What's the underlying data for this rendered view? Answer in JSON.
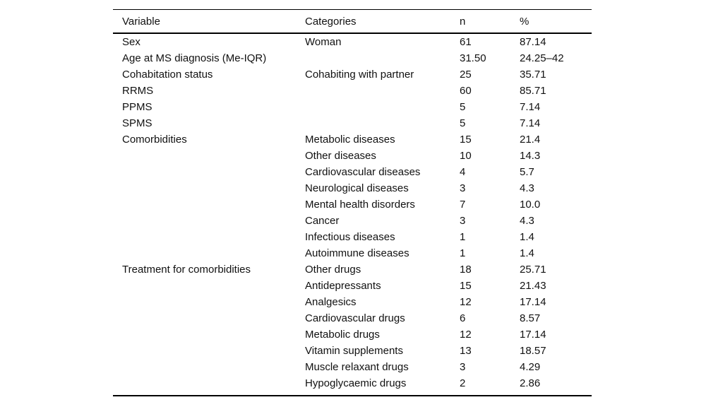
{
  "table": {
    "header": {
      "variable": "Variable",
      "category": "Categories",
      "n": "n",
      "pct": "%"
    },
    "rows": [
      [
        "Sex",
        "Woman",
        "61",
        "87.14"
      ],
      [
        "Age at MS diagnosis (Me-IQR)",
        "",
        "31.50",
        "24.25–42"
      ],
      [
        "Cohabitation status",
        "Cohabiting with partner",
        "25",
        "35.71"
      ],
      [
        "RRMS",
        "",
        "60",
        "85.71"
      ],
      [
        "PPMS",
        "",
        "5",
        "7.14"
      ],
      [
        "SPMS",
        "",
        "5",
        "7.14"
      ],
      [
        "Comorbidities",
        "Metabolic diseases",
        "15",
        "21.4"
      ],
      [
        "",
        "Other diseases",
        "10",
        "14.3"
      ],
      [
        "",
        "Cardiovascular diseases",
        "4",
        "5.7"
      ],
      [
        "",
        "Neurological diseases",
        "3",
        "4.3"
      ],
      [
        "",
        "Mental health disorders",
        "7",
        "10.0"
      ],
      [
        "",
        "Cancer",
        "3",
        "4.3"
      ],
      [
        "",
        "Infectious diseases",
        "1",
        "1.4"
      ],
      [
        "",
        "Autoimmune diseases",
        "1",
        "1.4"
      ],
      [
        "Treatment for comorbidities",
        "Other drugs",
        "18",
        "25.71"
      ],
      [
        "",
        "Antidepressants",
        "15",
        "21.43"
      ],
      [
        "",
        "Analgesics",
        "12",
        "17.14"
      ],
      [
        "",
        "Cardiovascular drugs",
        "6",
        "8.57"
      ],
      [
        "",
        "Metabolic drugs",
        "12",
        "17.14"
      ],
      [
        "",
        "Vitamin supplements",
        "13",
        "18.57"
      ],
      [
        "",
        "Muscle relaxant drugs",
        "3",
        "4.29"
      ],
      [
        "",
        "Hypoglycaemic drugs",
        "2",
        "2.86"
      ]
    ]
  },
  "colors": {
    "background": "#ffffff",
    "text": "#111111",
    "rule": "#000000"
  }
}
